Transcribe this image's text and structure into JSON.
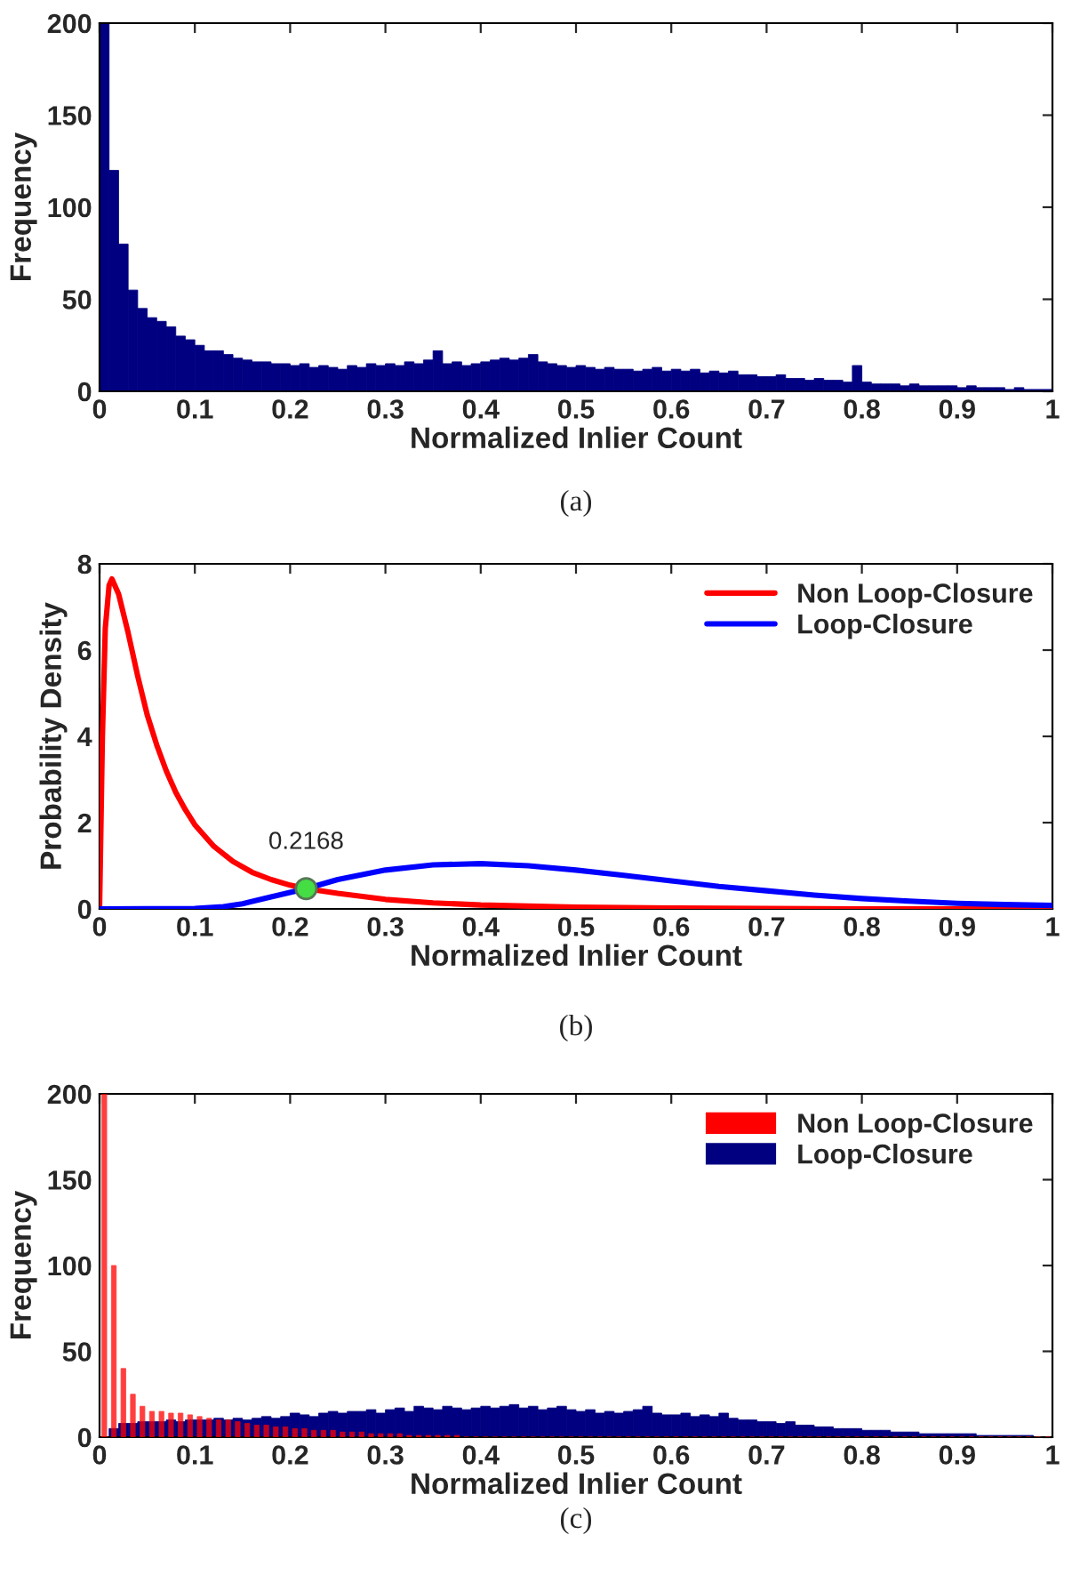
{
  "chart_data": [
    {
      "type": "histogram",
      "xlabel": "Normalized Inlier Count",
      "ylabel": "Frequency",
      "annotations": [
        "(a)"
      ],
      "bins": [
        0,
        0.01,
        0.02,
        0.03,
        0.04,
        0.05,
        0.06,
        0.07,
        0.08,
        0.09,
        0.1,
        0.11,
        0.12,
        0.13,
        0.14,
        0.15,
        0.16,
        0.17,
        0.18,
        0.19,
        0.2,
        0.21,
        0.22,
        0.23,
        0.24,
        0.25,
        0.26,
        0.27,
        0.28,
        0.29,
        0.3,
        0.31,
        0.32,
        0.33,
        0.34,
        0.35,
        0.36,
        0.37,
        0.38,
        0.39,
        0.4,
        0.41,
        0.42,
        0.43,
        0.44,
        0.45,
        0.46,
        0.47,
        0.48,
        0.49,
        0.5,
        0.51,
        0.52,
        0.53,
        0.54,
        0.55,
        0.56,
        0.57,
        0.58,
        0.59,
        0.6,
        0.61,
        0.62,
        0.63,
        0.64,
        0.65,
        0.66,
        0.67,
        0.68,
        0.69,
        0.7,
        0.71,
        0.72,
        0.73,
        0.74,
        0.75,
        0.76,
        0.77,
        0.78,
        0.79,
        0.8,
        0.81,
        0.82,
        0.83,
        0.84,
        0.85,
        0.86,
        0.87,
        0.88,
        0.89,
        0.9,
        0.91,
        0.92,
        0.93,
        0.94,
        0.95,
        0.96,
        0.97,
        0.98,
        0.99,
        1
      ],
      "series": [
        {
          "color": "#000080",
          "values": [
            200,
            120,
            80,
            55,
            45,
            40,
            38,
            35,
            30,
            28,
            25,
            22,
            22,
            20,
            18,
            17,
            16,
            16,
            15,
            15,
            14,
            15,
            13,
            14,
            13,
            12,
            14,
            13,
            15,
            14,
            15,
            14,
            16,
            15,
            17,
            22,
            15,
            16,
            14,
            15,
            16,
            17,
            18,
            17,
            18,
            20,
            16,
            15,
            14,
            13,
            14,
            13,
            12,
            13,
            12,
            12,
            11,
            12,
            13,
            11,
            12,
            11,
            12,
            10,
            11,
            10,
            11,
            9,
            9,
            8,
            8,
            9,
            7,
            7,
            6,
            7,
            6,
            6,
            5,
            14,
            5,
            4,
            4,
            4,
            3,
            4,
            3,
            3,
            3,
            3,
            2,
            3,
            2,
            2,
            2,
            1,
            2,
            1,
            1,
            1
          ]
        }
      ],
      "xlim": [
        0,
        1
      ],
      "ylim": [
        0,
        200
      ],
      "xticks": [
        0,
        0.1,
        0.2,
        0.3,
        0.4,
        0.5,
        0.6,
        0.7,
        0.8,
        0.9,
        1
      ],
      "yticks": [
        0,
        50,
        100,
        150,
        200
      ]
    },
    {
      "type": "line",
      "xlabel": "Normalized Inlier Count",
      "ylabel": "Probability Density",
      "legend": "top right",
      "annotations": [
        {
          "text": "0.2168",
          "x": 0.2168,
          "y": 0.47
        },
        "(b)"
      ],
      "series": [
        {
          "name": "Non Loop-Closure",
          "color": "#ff0000",
          "x": [
            0,
            0.003,
            0.006,
            0.01,
            0.013,
            0.02,
            0.03,
            0.04,
            0.05,
            0.06,
            0.07,
            0.08,
            0.09,
            0.1,
            0.12,
            0.14,
            0.16,
            0.18,
            0.2,
            0.2168,
            0.25,
            0.3,
            0.35,
            0.4,
            0.5,
            0.6,
            0.7,
            0.8,
            1
          ],
          "values": [
            0,
            4,
            6.5,
            7.5,
            7.65,
            7.3,
            6.4,
            5.4,
            4.5,
            3.8,
            3.2,
            2.7,
            2.3,
            1.95,
            1.45,
            1.1,
            0.85,
            0.68,
            0.55,
            0.47,
            0.36,
            0.22,
            0.14,
            0.09,
            0.04,
            0.02,
            0.01,
            0,
            0
          ]
        },
        {
          "name": "Loop-Closure",
          "color": "#0000ff",
          "x": [
            0,
            0.1,
            0.13,
            0.15,
            0.18,
            0.2168,
            0.25,
            0.3,
            0.35,
            0.4,
            0.45,
            0.5,
            0.55,
            0.6,
            0.65,
            0.7,
            0.75,
            0.8,
            0.85,
            0.9,
            0.95,
            1
          ],
          "values": [
            0,
            0.01,
            0.05,
            0.12,
            0.28,
            0.47,
            0.68,
            0.9,
            1.02,
            1.05,
            1.0,
            0.9,
            0.78,
            0.65,
            0.52,
            0.42,
            0.32,
            0.24,
            0.18,
            0.13,
            0.1,
            0.08
          ]
        },
        {
          "type": "scatter",
          "color": "#44dd44",
          "x": [
            0.2168
          ],
          "values": [
            0.47
          ]
        }
      ],
      "xlim": [
        0,
        1
      ],
      "ylim": [
        0,
        8
      ],
      "xticks": [
        0,
        0.1,
        0.2,
        0.3,
        0.4,
        0.5,
        0.6,
        0.7,
        0.8,
        0.9,
        1
      ],
      "yticks": [
        0,
        2,
        4,
        6,
        8
      ]
    },
    {
      "type": "histogram",
      "xlabel": "Normalized Inlier Count",
      "ylabel": "Frequency",
      "legend": "top right",
      "annotations": [
        "(c)"
      ],
      "bins": [
        0,
        0.01,
        0.02,
        0.03,
        0.04,
        0.05,
        0.06,
        0.07,
        0.08,
        0.09,
        0.1,
        0.11,
        0.12,
        0.13,
        0.14,
        0.15,
        0.16,
        0.17,
        0.18,
        0.19,
        0.2,
        0.21,
        0.22,
        0.23,
        0.24,
        0.25,
        0.26,
        0.27,
        0.28,
        0.29,
        0.3,
        0.31,
        0.32,
        0.33,
        0.34,
        0.35,
        0.36,
        0.37,
        0.38,
        0.39,
        0.4,
        0.41,
        0.42,
        0.43,
        0.44,
        0.45,
        0.46,
        0.47,
        0.48,
        0.49,
        0.5,
        0.51,
        0.52,
        0.53,
        0.54,
        0.55,
        0.56,
        0.57,
        0.58,
        0.59,
        0.6,
        0.61,
        0.62,
        0.63,
        0.64,
        0.65,
        0.66,
        0.67,
        0.68,
        0.69,
        0.7,
        0.71,
        0.72,
        0.73,
        0.74,
        0.75,
        0.76,
        0.77,
        0.78,
        0.79,
        0.8,
        0.81,
        0.82,
        0.83,
        0.84,
        0.85,
        0.86,
        0.87,
        0.88,
        0.89,
        0.9,
        0.91,
        0.92,
        0.93,
        0.94,
        0.95,
        0.96,
        0.97,
        0.98,
        0.99,
        1
      ],
      "series": [
        {
          "name": "Non Loop-Closure",
          "color": "#ff0000",
          "values": [
            200,
            100,
            40,
            25,
            18,
            15,
            15,
            14,
            14,
            13,
            12,
            11,
            10,
            10,
            9,
            8,
            7,
            7,
            6,
            6,
            5,
            5,
            4,
            4,
            4,
            3,
            3,
            3,
            2,
            2,
            2,
            2,
            1,
            1,
            1,
            1,
            1,
            1,
            0,
            0,
            0,
            0,
            0,
            0,
            0,
            0,
            0,
            0,
            0,
            0,
            0,
            0,
            0,
            0,
            0,
            0,
            0,
            0,
            0,
            0,
            0,
            0,
            0,
            0,
            0,
            0,
            0,
            0,
            0,
            0,
            0,
            0,
            0,
            0,
            0,
            0,
            0,
            0,
            0,
            0,
            0,
            0,
            0,
            0,
            0,
            0,
            0,
            0,
            0,
            0,
            0,
            0,
            0,
            0,
            0,
            0,
            0,
            0,
            0,
            0
          ]
        },
        {
          "name": "Loop-Closure",
          "color": "#000080",
          "values": [
            0,
            5,
            8,
            8,
            9,
            9,
            9,
            10,
            9,
            10,
            10,
            10,
            11,
            10,
            11,
            10,
            11,
            12,
            11,
            12,
            14,
            13,
            12,
            14,
            15,
            14,
            15,
            15,
            16,
            14,
            16,
            17,
            15,
            18,
            17,
            16,
            18,
            17,
            16,
            17,
            18,
            17,
            18,
            19,
            17,
            18,
            16,
            17,
            18,
            16,
            15,
            16,
            14,
            15,
            14,
            15,
            16,
            18,
            14,
            13,
            13,
            14,
            12,
            13,
            12,
            14,
            11,
            10,
            10,
            9,
            9,
            8,
            9,
            7,
            7,
            6,
            6,
            5,
            5,
            5,
            4,
            4,
            4,
            3,
            3,
            3,
            2,
            2,
            2,
            2,
            2,
            2,
            1,
            1,
            1,
            1,
            1,
            1,
            0,
            0
          ]
        }
      ],
      "xlim": [
        0,
        1
      ],
      "ylim": [
        0,
        200
      ],
      "xticks": [
        0,
        0.1,
        0.2,
        0.3,
        0.4,
        0.5,
        0.6,
        0.7,
        0.8,
        0.9,
        1
      ],
      "yticks": [
        0,
        50,
        100,
        150,
        200
      ]
    }
  ]
}
